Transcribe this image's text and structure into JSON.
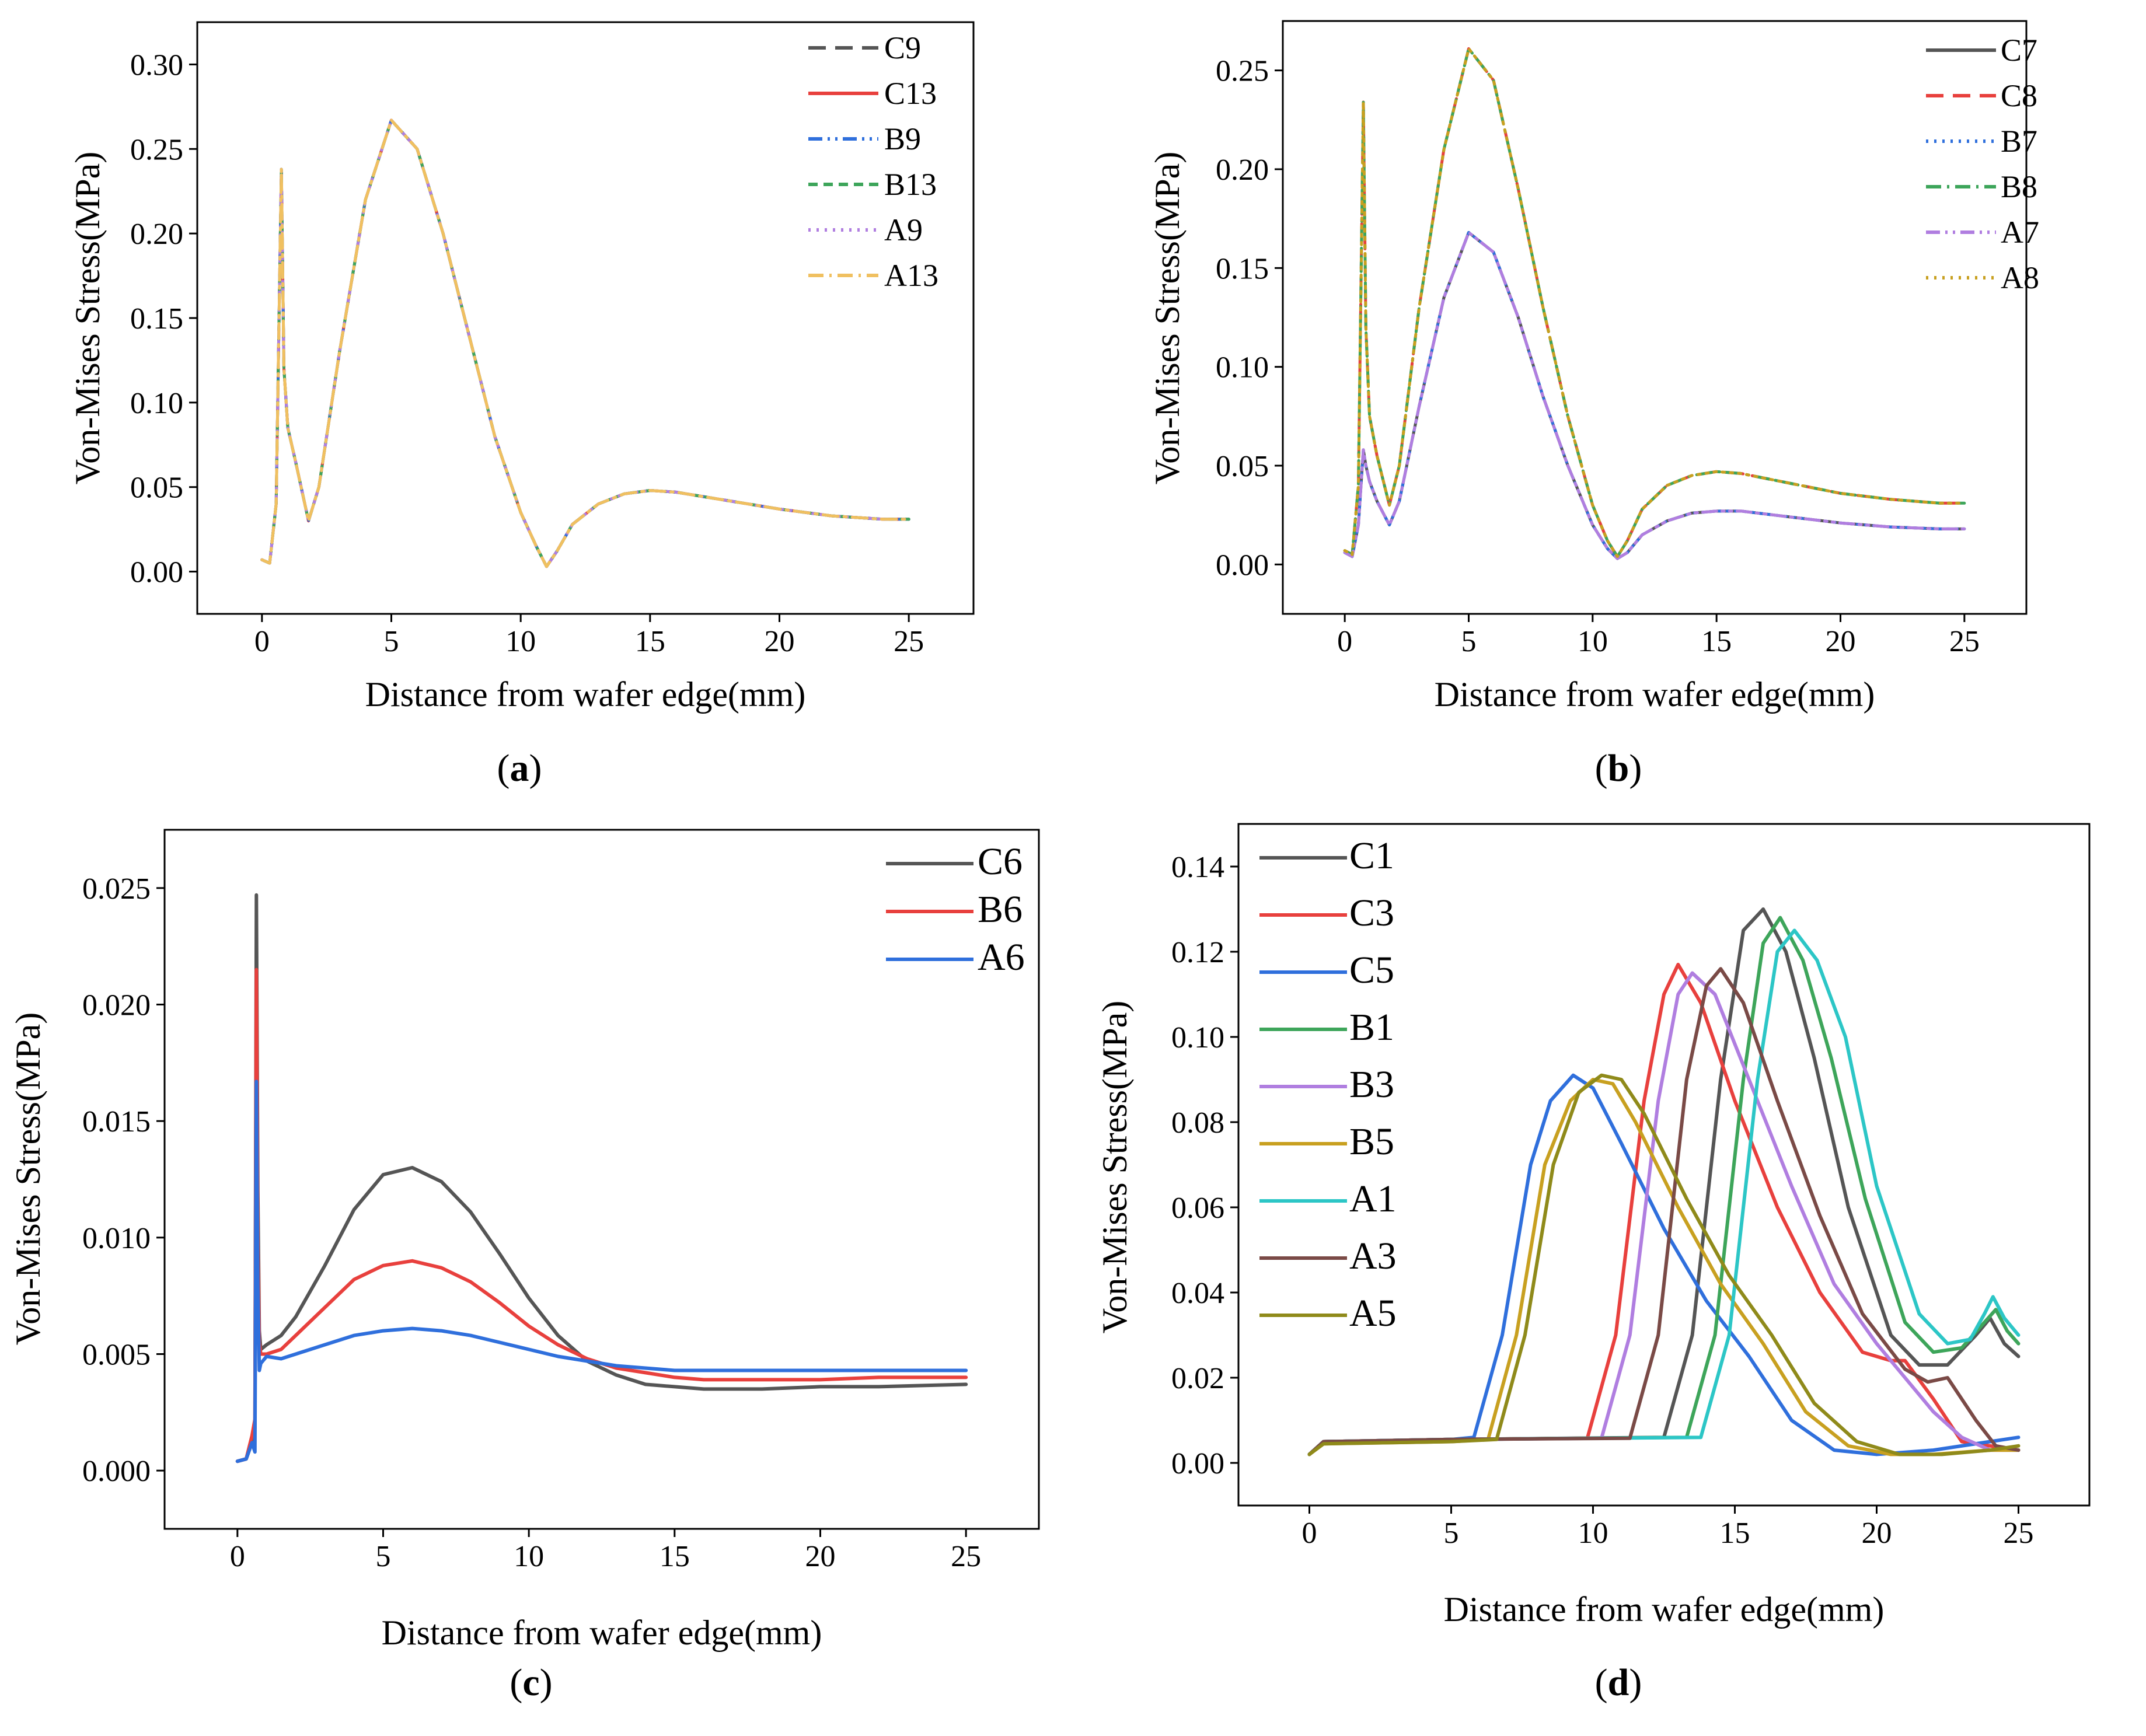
{
  "chart_data": [
    {
      "id": "a",
      "type": "line",
      "caption_label": "a",
      "xlabel": "Distance from wafer edge(mm)",
      "ylabel": "Von-Mises Stress(MPa)",
      "xlim": [
        -2.5,
        27.5
      ],
      "ylim": [
        -0.025,
        0.325
      ],
      "xticks": [
        0,
        5,
        10,
        15,
        20,
        25
      ],
      "xtick_labels": [
        "0",
        "5",
        "10",
        "15",
        "20",
        "25"
      ],
      "yticks": [
        0.0,
        0.05,
        0.1,
        0.15,
        0.2,
        0.25,
        0.3
      ],
      "ytick_labels": [
        "0.00",
        "0.05",
        "0.10",
        "0.15",
        "0.20",
        "0.25",
        "0.30"
      ],
      "legend_position": "top-right",
      "series": [
        {
          "name": "C9",
          "color": "#555555",
          "dash": "dash"
        },
        {
          "name": "C13",
          "color": "#e8403d",
          "dash": "solid"
        },
        {
          "name": "B9",
          "color": "#2f6fdc",
          "dash": "dashdotdot"
        },
        {
          "name": "B13",
          "color": "#3da55a",
          "dash": "shortdash"
        },
        {
          "name": "A9",
          "color": "#b07ee0",
          "dash": "dot"
        },
        {
          "name": "A13",
          "color": "#f0c060",
          "dash": "dashdot"
        }
      ],
      "shared_curve": {
        "x": [
          0,
          0.3,
          0.55,
          0.75,
          0.85,
          1.0,
          1.3,
          1.8,
          2.2,
          3.0,
          4.0,
          5.0,
          6.0,
          7.0,
          8.0,
          9.0,
          10.0,
          10.6,
          11.0,
          11.4,
          12.0,
          13.0,
          14.0,
          15.0,
          16.0,
          18.0,
          20.0,
          22.0,
          24.0,
          25.0
        ],
        "y": [
          0.007,
          0.005,
          0.04,
          0.238,
          0.12,
          0.085,
          0.065,
          0.03,
          0.05,
          0.13,
          0.22,
          0.267,
          0.25,
          0.2,
          0.14,
          0.08,
          0.035,
          0.015,
          0.003,
          0.012,
          0.028,
          0.04,
          0.046,
          0.048,
          0.047,
          0.042,
          0.037,
          0.033,
          0.031,
          0.031
        ]
      }
    },
    {
      "id": "b",
      "type": "line",
      "caption_label": "b",
      "xlabel": "Distance from wafer edge(mm)",
      "ylabel": "Von-Mises Stress(MPa)",
      "xlim": [
        -2.5,
        27.5
      ],
      "ylim": [
        -0.025,
        0.275
      ],
      "xticks": [
        0,
        5,
        10,
        15,
        20,
        25
      ],
      "xtick_labels": [
        "0",
        "5",
        "10",
        "15",
        "20",
        "25"
      ],
      "yticks": [
        0.0,
        0.05,
        0.1,
        0.15,
        0.2,
        0.25
      ],
      "ytick_labels": [
        "0.00",
        "0.05",
        "0.10",
        "0.15",
        "0.20",
        "0.25"
      ],
      "legend_position": "top-right",
      "series": [
        {
          "name": "C7",
          "color": "#555555",
          "dash": "solid",
          "group": "low"
        },
        {
          "name": "C8",
          "color": "#e8403d",
          "dash": "dash",
          "group": "high"
        },
        {
          "name": "B7",
          "color": "#2f6fdc",
          "dash": "dot",
          "group": "low"
        },
        {
          "name": "B8",
          "color": "#3da55a",
          "dash": "dashdot",
          "group": "high"
        },
        {
          "name": "A7",
          "color": "#b07ee0",
          "dash": "dashdotdot",
          "group": "low"
        },
        {
          "name": "A8",
          "color": "#c8a020",
          "dash": "dot",
          "group": "high"
        }
      ],
      "curve_high": {
        "x": [
          0,
          0.3,
          0.55,
          0.75,
          0.85,
          1.0,
          1.3,
          1.8,
          2.2,
          3.0,
          4.0,
          5.0,
          6.0,
          7.0,
          8.0,
          9.0,
          10.0,
          10.6,
          11.0,
          11.4,
          12.0,
          13.0,
          14.0,
          15.0,
          16.0,
          18.0,
          20.0,
          22.0,
          24.0,
          25.0
        ],
        "y": [
          0.007,
          0.005,
          0.04,
          0.234,
          0.12,
          0.075,
          0.055,
          0.03,
          0.05,
          0.13,
          0.21,
          0.261,
          0.245,
          0.19,
          0.13,
          0.075,
          0.03,
          0.012,
          0.004,
          0.012,
          0.028,
          0.04,
          0.045,
          0.047,
          0.046,
          0.041,
          0.036,
          0.033,
          0.031,
          0.031
        ]
      },
      "curve_low": {
        "x": [
          0,
          0.3,
          0.55,
          0.75,
          0.85,
          1.0,
          1.3,
          1.8,
          2.2,
          3.0,
          4.0,
          5.0,
          6.0,
          7.0,
          8.0,
          9.0,
          10.0,
          10.6,
          11.0,
          11.4,
          12.0,
          13.0,
          14.0,
          15.0,
          16.0,
          18.0,
          20.0,
          22.0,
          24.0,
          25.0
        ],
        "y": [
          0.006,
          0.004,
          0.02,
          0.058,
          0.05,
          0.042,
          0.032,
          0.02,
          0.032,
          0.08,
          0.135,
          0.168,
          0.158,
          0.125,
          0.085,
          0.05,
          0.02,
          0.008,
          0.003,
          0.006,
          0.015,
          0.022,
          0.026,
          0.027,
          0.027,
          0.024,
          0.021,
          0.019,
          0.018,
          0.018
        ]
      }
    },
    {
      "id": "c",
      "type": "line",
      "caption_label": "c",
      "xlabel": "Distance from wafer edge(mm)",
      "ylabel": "Von-Mises Stress(MPa)",
      "xlim": [
        -2.5,
        27.5
      ],
      "ylim": [
        -0.0025,
        0.0275
      ],
      "xticks": [
        0,
        5,
        10,
        15,
        20,
        25
      ],
      "xtick_labels": [
        "0",
        "5",
        "10",
        "15",
        "20",
        "25"
      ],
      "yticks": [
        0.0,
        0.005,
        0.01,
        0.015,
        0.02,
        0.025
      ],
      "ytick_labels": [
        "0.000",
        "0.005",
        "0.010",
        "0.015",
        "0.020",
        "0.025"
      ],
      "legend_position": "top-right",
      "series": [
        {
          "name": "C6",
          "color": "#555555",
          "dash": "solid",
          "x": [
            0,
            0.3,
            0.5,
            0.6,
            0.65,
            0.7,
            0.75,
            0.8,
            1.0,
            1.5,
            2.0,
            3.0,
            4.0,
            5.0,
            6.0,
            7.0,
            8.0,
            9.0,
            10.0,
            11.0,
            12.0,
            13.0,
            14.0,
            15.0,
            16.0,
            18.0,
            20.0,
            22.0,
            25.0
          ],
          "y": [
            0.0004,
            0.0005,
            0.0012,
            0.0018,
            0.0247,
            0.012,
            0.006,
            0.0052,
            0.0054,
            0.0058,
            0.0066,
            0.0088,
            0.0112,
            0.0127,
            0.013,
            0.0124,
            0.0111,
            0.0093,
            0.0074,
            0.0058,
            0.0047,
            0.0041,
            0.0037,
            0.0036,
            0.0035,
            0.0035,
            0.0036,
            0.0036,
            0.0037
          ]
        },
        {
          "name": "B6",
          "color": "#e8403d",
          "dash": "solid",
          "x": [
            0,
            0.3,
            0.5,
            0.6,
            0.65,
            0.7,
            0.75,
            0.8,
            1.0,
            1.5,
            2.0,
            3.0,
            4.0,
            5.0,
            6.0,
            7.0,
            8.0,
            9.0,
            10.0,
            11.0,
            12.0,
            13.0,
            14.0,
            15.0,
            16.0,
            18.0,
            20.0,
            22.0,
            25.0
          ],
          "y": [
            0.0004,
            0.0005,
            0.0015,
            0.0022,
            0.0215,
            0.01,
            0.0055,
            0.005,
            0.005,
            0.0052,
            0.0058,
            0.007,
            0.0082,
            0.0088,
            0.009,
            0.0087,
            0.0081,
            0.0072,
            0.0062,
            0.0054,
            0.0048,
            0.0044,
            0.0042,
            0.004,
            0.0039,
            0.0039,
            0.0039,
            0.004,
            0.004
          ]
        },
        {
          "name": "A6",
          "color": "#2f6fdc",
          "dash": "solid",
          "x": [
            0,
            0.3,
            0.5,
            0.6,
            0.65,
            0.7,
            0.75,
            0.8,
            1.0,
            1.5,
            2.0,
            3.0,
            4.0,
            5.0,
            6.0,
            7.0,
            8.0,
            9.0,
            10.0,
            11.0,
            12.0,
            13.0,
            14.0,
            15.0,
            16.0,
            18.0,
            20.0,
            22.0,
            25.0
          ],
          "y": [
            0.0004,
            0.0005,
            0.0012,
            0.0008,
            0.0167,
            0.008,
            0.0043,
            0.0046,
            0.0049,
            0.0048,
            0.005,
            0.0054,
            0.0058,
            0.006,
            0.0061,
            0.006,
            0.0058,
            0.0055,
            0.0052,
            0.0049,
            0.0047,
            0.0045,
            0.0044,
            0.0043,
            0.0043,
            0.0043,
            0.0043,
            0.0043,
            0.0043
          ]
        }
      ]
    },
    {
      "id": "d",
      "type": "line",
      "caption_label": "d",
      "xlabel": "Distance from wafer edge(mm)",
      "ylabel": "Von-Mises Stress(MPa)",
      "xlim": [
        -2.5,
        27.5
      ],
      "ylim": [
        -0.01,
        0.15
      ],
      "xticks": [
        0,
        5,
        10,
        15,
        20,
        25
      ],
      "xtick_labels": [
        "0",
        "5",
        "10",
        "15",
        "20",
        "25"
      ],
      "yticks": [
        0.0,
        0.02,
        0.04,
        0.06,
        0.08,
        0.1,
        0.12,
        0.14
      ],
      "ytick_labels": [
        "0.00",
        "0.02",
        "0.04",
        "0.06",
        "0.08",
        "0.10",
        "0.12",
        "0.14"
      ],
      "legend_position": "top-left",
      "series": [
        {
          "name": "C1",
          "color": "#555555",
          "dash": "solid",
          "x": [
            0,
            0.5,
            5,
            12.5,
            13.5,
            14.5,
            15.3,
            16.0,
            16.8,
            17.8,
            19.0,
            20.5,
            21.5,
            22.5,
            23.5,
            24.0,
            24.5,
            25.0
          ],
          "y": [
            0.002,
            0.005,
            0.0055,
            0.006,
            0.03,
            0.09,
            0.125,
            0.13,
            0.12,
            0.095,
            0.06,
            0.03,
            0.023,
            0.023,
            0.03,
            0.034,
            0.028,
            0.025
          ]
        },
        {
          "name": "C3",
          "color": "#e8403d",
          "dash": "solid",
          "x": [
            0,
            0.5,
            5,
            9.8,
            10.8,
            11.8,
            12.5,
            13.0,
            13.8,
            15.0,
            16.5,
            18.0,
            19.5,
            20.5,
            21.0,
            22.0,
            23.0,
            25.0
          ],
          "y": [
            0.002,
            0.005,
            0.0055,
            0.0058,
            0.03,
            0.085,
            0.11,
            0.117,
            0.108,
            0.085,
            0.06,
            0.04,
            0.026,
            0.024,
            0.024,
            0.015,
            0.005,
            0.003
          ]
        },
        {
          "name": "C5",
          "color": "#2f6fdc",
          "dash": "solid",
          "x": [
            0,
            0.5,
            5,
            5.8,
            6.8,
            7.8,
            8.5,
            9.3,
            10.0,
            11.0,
            12.5,
            14.0,
            15.5,
            17.0,
            18.5,
            20.0,
            22.0,
            24.0,
            25.0
          ],
          "y": [
            0.002,
            0.005,
            0.0055,
            0.006,
            0.03,
            0.07,
            0.085,
            0.091,
            0.088,
            0.075,
            0.055,
            0.038,
            0.025,
            0.01,
            0.003,
            0.002,
            0.003,
            0.005,
            0.006
          ]
        },
        {
          "name": "B1",
          "color": "#3da55a",
          "dash": "solid",
          "x": [
            0,
            0.5,
            5,
            13.3,
            14.3,
            15.3,
            16.0,
            16.6,
            17.4,
            18.4,
            19.6,
            21.0,
            22.0,
            23.0,
            23.8,
            24.2,
            24.6,
            25.0
          ],
          "y": [
            0.002,
            0.005,
            0.0055,
            0.006,
            0.03,
            0.09,
            0.122,
            0.128,
            0.118,
            0.095,
            0.062,
            0.033,
            0.026,
            0.027,
            0.033,
            0.036,
            0.031,
            0.028
          ]
        },
        {
          "name": "B3",
          "color": "#b07ee0",
          "dash": "solid",
          "x": [
            0,
            0.5,
            5,
            10.3,
            11.3,
            12.3,
            13.0,
            13.5,
            14.3,
            15.5,
            17.0,
            18.5,
            20.0,
            21.0,
            22.0,
            23.0,
            24.0,
            25.0
          ],
          "y": [
            0.002,
            0.005,
            0.0055,
            0.0058,
            0.03,
            0.085,
            0.11,
            0.115,
            0.11,
            0.09,
            0.065,
            0.042,
            0.028,
            0.02,
            0.012,
            0.006,
            0.003,
            0.003
          ]
        },
        {
          "name": "B5",
          "color": "#c8a020",
          "dash": "solid",
          "x": [
            0,
            0.5,
            5,
            6.3,
            7.3,
            8.3,
            9.2,
            10.0,
            10.7,
            11.5,
            13.0,
            14.5,
            16.0,
            17.5,
            19.0,
            20.5,
            22.0,
            24.0,
            25.0
          ],
          "y": [
            0.002,
            0.0045,
            0.005,
            0.0055,
            0.03,
            0.07,
            0.085,
            0.09,
            0.089,
            0.08,
            0.06,
            0.042,
            0.028,
            0.012,
            0.004,
            0.002,
            0.002,
            0.003,
            0.003
          ]
        },
        {
          "name": "A1",
          "color": "#2cc6c6",
          "dash": "solid",
          "x": [
            0,
            0.5,
            5,
            13.8,
            14.8,
            15.8,
            16.5,
            17.1,
            17.9,
            18.9,
            20.0,
            21.5,
            22.5,
            23.3,
            23.8,
            24.1,
            24.5,
            25.0
          ],
          "y": [
            0.002,
            0.005,
            0.0055,
            0.006,
            0.03,
            0.09,
            0.12,
            0.125,
            0.118,
            0.1,
            0.065,
            0.035,
            0.028,
            0.029,
            0.035,
            0.039,
            0.034,
            0.03
          ]
        },
        {
          "name": "A3",
          "color": "#7a4a46",
          "dash": "solid",
          "x": [
            0,
            0.5,
            5,
            11.3,
            12.3,
            13.3,
            14.0,
            14.5,
            15.3,
            16.5,
            18.0,
            19.5,
            21.0,
            21.8,
            22.5,
            23.5,
            24.2,
            25.0
          ],
          "y": [
            0.002,
            0.005,
            0.0055,
            0.0058,
            0.03,
            0.09,
            0.112,
            0.116,
            0.108,
            0.085,
            0.058,
            0.035,
            0.022,
            0.019,
            0.02,
            0.01,
            0.004,
            0.003
          ]
        },
        {
          "name": "A5",
          "color": "#8f8a1a",
          "dash": "solid",
          "x": [
            0,
            0.5,
            5,
            6.6,
            7.6,
            8.6,
            9.5,
            10.3,
            11.0,
            11.8,
            13.3,
            14.8,
            16.3,
            17.8,
            19.3,
            20.8,
            22.3,
            24.0,
            25.0
          ],
          "y": [
            0.002,
            0.0045,
            0.005,
            0.0055,
            0.03,
            0.07,
            0.087,
            0.091,
            0.09,
            0.082,
            0.062,
            0.044,
            0.03,
            0.014,
            0.005,
            0.002,
            0.002,
            0.003,
            0.004
          ]
        }
      ]
    }
  ]
}
